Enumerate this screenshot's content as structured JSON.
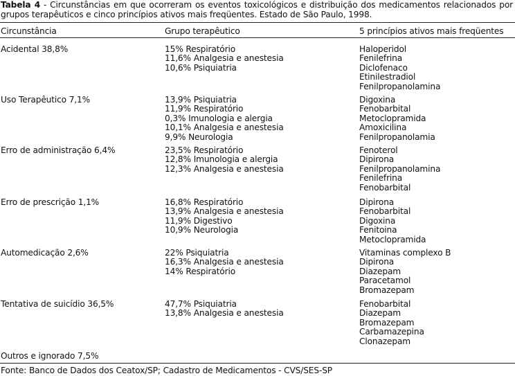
{
  "caption": {
    "label": "Tabela 4",
    "text": " - Circunstâncias em que ocorreram os eventos toxicológicos e distribuição dos medicamentos relacionados por grupos terapêuticos e cinco princípios ativos mais freqüentes. Estado de São Paulo, 1998."
  },
  "headers": {
    "circumstance": "Circunstância",
    "group": "Grupo terapêutico",
    "actives": "5 princípios ativos mais freqüentes"
  },
  "rows": [
    {
      "circumstance": "Acidental 38,8%",
      "groups": [
        "15% Respiratório",
        "11,6% Analgesia e anestesia",
        "10,6% Psiquiatria"
      ],
      "actives": [
        "Haloperidol",
        "Fenilefrina",
        "Diclofenaco",
        "Etinilestradiol",
        "Fenilpropanolamina"
      ]
    },
    {
      "circumstance": "Uso Terapêutico 7,1%",
      "groups": [
        "13,9% Psiquiatria",
        "11,9% Respiratório",
        "0,3% Imunologia e alergia",
        "10,1% Analgesia e anestesia",
        "9,9% Neurologia"
      ],
      "actives": [
        "Digoxina",
        "Fenobarbital",
        "Metoclopramida",
        "Amoxicilina",
        "Fenilpropanolamia"
      ]
    },
    {
      "circumstance": "Erro de administração 6,4%",
      "groups": [
        "23,5% Respiratório",
        "12,8% Imunologia e alergia",
        "12,3% Analgesia e anestesia"
      ],
      "actives": [
        "Fenoterol",
        "Dipirona",
        "Fenilpropanolamina",
        "Fenilefrina",
        "Fenobarbital"
      ]
    },
    {
      "circumstance": "Erro de prescrição 1,1%",
      "groups": [
        "16,8% Respiratório",
        "13,9% Analgesia e anestesia",
        "11,9% Digestivo",
        "10,9% Neurologia"
      ],
      "actives": [
        "Dipirona",
        "Fenobarbital",
        "Digoxina",
        "Fenitoina",
        "Metoclopramida"
      ]
    },
    {
      "circumstance": "Automedicação 2,6%",
      "groups": [
        "22% Psiquiatria",
        "16,3% Analgesia e anestesia",
        "14% Respiratório"
      ],
      "actives": [
        "Vitaminas complexo B",
        "Dipirona",
        "Diazepam",
        "Paracetamol",
        "Bromazepam"
      ]
    },
    {
      "circumstance": "Tentativa de suicídio 36,5%",
      "groups": [
        "47,7% Psiquiatria",
        "13,8% Analgesia e anestesia"
      ],
      "actives": [
        "Fenobarbital",
        "Diazepam",
        "Bromazepam",
        "Carbamazepina",
        "Clonazepam"
      ]
    }
  ],
  "other": "Outros e ignorado 7,5%",
  "source": "Fonte: Banco de Dados dos Ceatox/SP; Cadastro de Medicamentos - CVS/SES-SP"
}
